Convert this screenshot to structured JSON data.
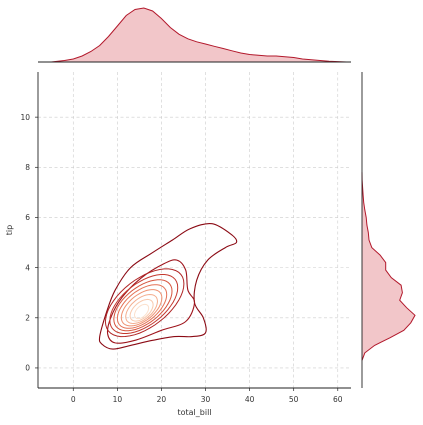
{
  "chart_data": {
    "type": "kde-joint",
    "xlabel": "total_bill",
    "ylabel": "tip",
    "xlim": [
      -8,
      63
    ],
    "ylim": [
      -0.8,
      11.8
    ],
    "xticks": [
      0,
      10,
      20,
      30,
      40,
      50,
      60
    ],
    "yticks": [
      0,
      2,
      4,
      6,
      8,
      10
    ],
    "grid": true,
    "grid_style": "dashed",
    "color": "#b2182b",
    "fill_color": "#f2c6c9",
    "contour_colors": [
      "#8b0a14",
      "#9e141c",
      "#b02525",
      "#c4382e",
      "#d6553e",
      "#e47256",
      "#ee9171",
      "#f4ae8f",
      "#f8c9ad",
      "#fbe0cc"
    ],
    "contour_levels": [
      {
        "cx": 16.5,
        "cy": 2.7,
        "rx": 10.0,
        "ry": 1.32,
        "angle": 0.085
      },
      {
        "cx": 16.2,
        "cy": 2.6,
        "rx": 8.9,
        "ry": 1.12,
        "angle": 0.085
      },
      {
        "cx": 16.0,
        "cy": 2.55,
        "rx": 7.7,
        "ry": 0.98,
        "angle": 0.085
      },
      {
        "cx": 15.8,
        "cy": 2.5,
        "rx": 6.6,
        "ry": 0.85,
        "angle": 0.085
      },
      {
        "cx": 15.6,
        "cy": 2.45,
        "rx": 5.6,
        "ry": 0.73,
        "angle": 0.085
      },
      {
        "cx": 15.5,
        "cy": 2.4,
        "rx": 4.6,
        "ry": 0.61,
        "angle": 0.085
      },
      {
        "cx": 15.5,
        "cy": 2.35,
        "rx": 3.6,
        "ry": 0.49,
        "angle": 0.085
      },
      {
        "cx": 15.5,
        "cy": 2.3,
        "rx": 2.6,
        "ry": 0.37,
        "angle": 0.085
      },
      {
        "cx": 15.5,
        "cy": 2.25,
        "rx": 1.6,
        "ry": 0.25,
        "angle": 0.085
      }
    ],
    "outer_contour": [
      [
        6.0,
        1.25
      ],
      [
        6.5,
        0.95
      ],
      [
        9.0,
        0.75
      ],
      [
        13.0,
        0.9
      ],
      [
        18.0,
        1.1
      ],
      [
        23.0,
        1.25
      ],
      [
        27.0,
        1.25
      ],
      [
        30.0,
        1.4
      ],
      [
        29.5,
        2.0
      ],
      [
        27.5,
        2.6
      ],
      [
        28.0,
        3.5
      ],
      [
        30.5,
        4.3
      ],
      [
        34.5,
        4.8
      ],
      [
        37.0,
        5.0
      ],
      [
        36.0,
        5.3
      ],
      [
        31.5,
        5.75
      ],
      [
        26.5,
        5.55
      ],
      [
        22.5,
        5.1
      ],
      [
        18.0,
        4.6
      ],
      [
        13.0,
        4.0
      ],
      [
        9.5,
        3.1
      ],
      [
        7.5,
        2.2
      ]
    ],
    "second_contour": [
      [
        7.8,
        1.35
      ],
      [
        9.5,
        1.0
      ],
      [
        14.0,
        1.1
      ],
      [
        20.0,
        1.5
      ],
      [
        25.5,
        1.85
      ],
      [
        27.5,
        2.6
      ],
      [
        26.0,
        3.1
      ],
      [
        25.5,
        3.9
      ],
      [
        23.5,
        4.3
      ],
      [
        20.5,
        4.15
      ],
      [
        15.5,
        3.6
      ],
      [
        11.0,
        2.8
      ],
      [
        8.5,
        2.0
      ]
    ],
    "marginal_x": {
      "x": [
        -5,
        -2,
        0,
        2,
        4,
        6,
        8,
        10,
        12,
        14,
        16,
        18,
        20,
        22,
        24,
        26,
        28,
        30,
        32,
        34,
        36,
        38,
        40,
        42,
        44,
        46,
        48,
        50,
        52,
        54,
        56,
        58,
        60,
        62
      ],
      "density": [
        0.0,
        0.002,
        0.004,
        0.008,
        0.014,
        0.022,
        0.034,
        0.048,
        0.062,
        0.07,
        0.072,
        0.068,
        0.058,
        0.046,
        0.037,
        0.031,
        0.027,
        0.024,
        0.021,
        0.018,
        0.015,
        0.012,
        0.01,
        0.009,
        0.008,
        0.008,
        0.007,
        0.006,
        0.004,
        0.003,
        0.002,
        0.001,
        0.0005,
        0.0
      ]
    },
    "marginal_y": {
      "y": [
        0.3,
        0.6,
        0.9,
        1.2,
        1.5,
        1.8,
        2.1,
        2.4,
        2.7,
        3.0,
        3.3,
        3.6,
        3.9,
        4.2,
        4.5,
        4.8,
        5.1,
        5.4,
        5.7,
        6.0,
        6.3,
        6.6,
        6.9,
        7.2,
        7.5,
        7.8
      ],
      "density": [
        0.0,
        0.02,
        0.09,
        0.2,
        0.3,
        0.35,
        0.38,
        0.32,
        0.27,
        0.29,
        0.28,
        0.21,
        0.17,
        0.17,
        0.13,
        0.07,
        0.05,
        0.045,
        0.035,
        0.03,
        0.02,
        0.012,
        0.008,
        0.004,
        0.001,
        0.0
      ]
    }
  }
}
